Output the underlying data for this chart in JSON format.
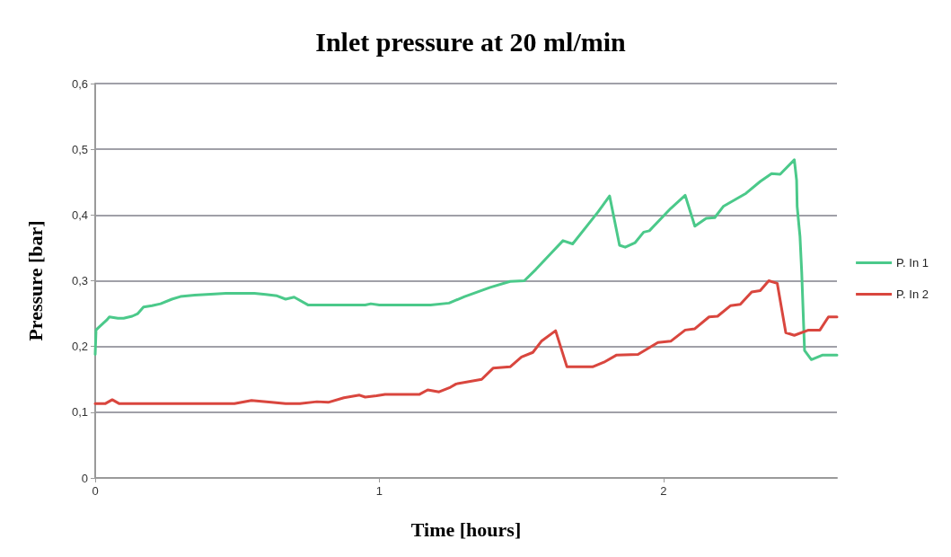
{
  "chart_data": {
    "type": "line",
    "title": "Inlet pressure at 20 ml/min",
    "xlabel": "Time [hours]",
    "ylabel": "Pressure [bar]",
    "xlim": [
      0,
      2.61
    ],
    "xticks": [
      0,
      1,
      2
    ],
    "ylim": [
      0,
      0.6
    ],
    "yticks": [
      0,
      {
        "value": 0.1,
        "label": "0,1"
      },
      {
        "value": 0.2,
        "label": "0,2"
      },
      {
        "value": 0.3,
        "label": "0,3"
      },
      {
        "value": 0.4,
        "label": "0,4"
      },
      {
        "value": 0.5,
        "label": "0,5"
      },
      {
        "value": 0.6,
        "label": "0,6"
      }
    ],
    "grid": "y",
    "legend": "right",
    "marker": "none",
    "line_style": "solid",
    "series": [
      {
        "name": "P. In 1",
        "color": "#4bc98a",
        "x": [
          0,
          0.003,
          0.01,
          0.04,
          0.05,
          0.08,
          0.1,
          0.13,
          0.15,
          0.17,
          0.2,
          0.23,
          0.27,
          0.3,
          0.35,
          0.42,
          0.46,
          0.5,
          0.56,
          0.6,
          0.64,
          0.67,
          0.7,
          0.75,
          0.85,
          0.95,
          0.97,
          1.0,
          1.18,
          1.245,
          1.3,
          1.39,
          1.46,
          1.51,
          1.55,
          1.6,
          1.646,
          1.68,
          1.77,
          1.81,
          1.845,
          1.865,
          1.9,
          1.93,
          1.95,
          2.025,
          2.076,
          2.11,
          2.15,
          2.18,
          2.21,
          2.29,
          2.34,
          2.38,
          2.41,
          2.46,
          2.468,
          2.47,
          2.48,
          2.486,
          2.496,
          2.52,
          2.56,
          2.61
        ],
        "values": [
          0.188,
          0.225,
          0.228,
          0.24,
          0.245,
          0.243,
          0.243,
          0.246,
          0.25,
          0.26,
          0.262,
          0.265,
          0.272,
          0.276,
          0.278,
          0.28,
          0.281,
          0.281,
          0.281,
          0.279,
          0.277,
          0.272,
          0.275,
          0.263,
          0.263,
          0.263,
          0.265,
          0.263,
          0.263,
          0.266,
          0.276,
          0.29,
          0.299,
          0.3,
          0.317,
          0.34,
          0.361,
          0.356,
          0.405,
          0.429,
          0.354,
          0.351,
          0.358,
          0.374,
          0.376,
          0.41,
          0.43,
          0.383,
          0.395,
          0.396,
          0.413,
          0.433,
          0.451,
          0.463,
          0.462,
          0.484,
          0.453,
          0.413,
          0.367,
          0.313,
          0.194,
          0.18,
          0.187,
          0.187
        ]
      },
      {
        "name": "P. In 2",
        "color": "#d9463e",
        "x": [
          0,
          0.035,
          0.06,
          0.085,
          0.49,
          0.55,
          0.62,
          0.67,
          0.72,
          0.78,
          0.82,
          0.875,
          0.93,
          0.95,
          0.99,
          1.02,
          1.14,
          1.17,
          1.21,
          1.25,
          1.27,
          1.36,
          1.4,
          1.46,
          1.5,
          1.54,
          1.57,
          1.62,
          1.66,
          1.75,
          1.79,
          1.835,
          1.91,
          1.98,
          2.025,
          2.076,
          2.11,
          2.16,
          2.19,
          2.235,
          2.27,
          2.31,
          2.34,
          2.37,
          2.4,
          2.43,
          2.46,
          2.51,
          2.55,
          2.58,
          2.61
        ],
        "values": [
          0.113,
          0.113,
          0.119,
          0.113,
          0.113,
          0.118,
          0.115,
          0.113,
          0.113,
          0.116,
          0.115,
          0.122,
          0.126,
          0.123,
          0.125,
          0.127,
          0.127,
          0.134,
          0.131,
          0.138,
          0.143,
          0.15,
          0.167,
          0.169,
          0.184,
          0.191,
          0.208,
          0.224,
          0.169,
          0.169,
          0.176,
          0.187,
          0.188,
          0.206,
          0.208,
          0.225,
          0.227,
          0.245,
          0.246,
          0.262,
          0.264,
          0.283,
          0.285,
          0.3,
          0.296,
          0.221,
          0.217,
          0.225,
          0.225,
          0.245,
          0.245
        ]
      }
    ]
  }
}
